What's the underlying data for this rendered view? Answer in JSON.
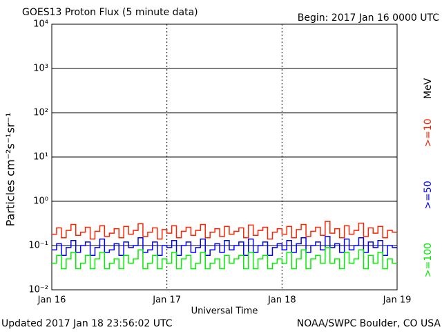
{
  "chart_data": {
    "type": "line",
    "title": "GOES13 Proton Flux (5 minute data)",
    "subtitle": "Begin: 2017 Jan 16 0000 UTC",
    "y_label": "Particles cm⁻²s⁻¹sr⁻¹",
    "x_label": "Universal Time",
    "legend_unit": "MeV",
    "footer_left": "Updated 2017 Jan 18 23:56:02 UTC",
    "footer_right": "NOAA/SWPC Boulder, CO USA",
    "log_scale": true,
    "grid": true,
    "xlim": [
      0,
      72
    ],
    "xticks": [
      {
        "value": 0,
        "label": "Jan 16"
      },
      {
        "value": 24,
        "label": "Jan 17"
      },
      {
        "value": 48,
        "label": "Jan 18"
      },
      {
        "value": 72,
        "label": "Jan 19"
      }
    ],
    "ylim": [
      0.01,
      10000
    ],
    "yticks": [
      {
        "value": 0.01,
        "label": "10⁻²"
      },
      {
        "value": 0.1,
        "label": "10⁻¹"
      },
      {
        "value": 1,
        "label": "10⁰"
      },
      {
        "value": 10,
        "label": "10¹"
      },
      {
        "value": 100,
        "label": "10²"
      },
      {
        "value": 1000,
        "label": "10³"
      },
      {
        "value": 10000,
        "label": "10⁴"
      }
    ],
    "x": [
      0,
      1,
      2,
      3,
      4,
      5,
      6,
      7,
      8,
      9,
      10,
      11,
      12,
      13,
      14,
      15,
      16,
      17,
      18,
      19,
      20,
      21,
      22,
      23,
      24,
      25,
      26,
      27,
      28,
      29,
      30,
      31,
      32,
      33,
      34,
      35,
      36,
      37,
      38,
      39,
      40,
      41,
      42,
      43,
      44,
      45,
      46,
      47,
      48,
      49,
      50,
      51,
      52,
      53,
      54,
      55,
      56,
      57,
      58,
      59,
      60,
      61,
      62,
      63,
      64,
      65,
      66,
      67,
      68,
      69,
      70,
      71
    ],
    "series": [
      {
        "name": ">=10",
        "color": "#ff2200",
        "values": [
          0.18,
          0.25,
          0.15,
          0.22,
          0.3,
          0.17,
          0.2,
          0.26,
          0.14,
          0.21,
          0.28,
          0.16,
          0.19,
          0.24,
          0.15,
          0.27,
          0.18,
          0.22,
          0.31,
          0.16,
          0.2,
          0.25,
          0.14,
          0.23,
          0.19,
          0.28,
          0.15,
          0.21,
          0.26,
          0.17,
          0.22,
          0.3,
          0.15,
          0.2,
          0.24,
          0.16,
          0.27,
          0.18,
          0.21,
          0.25,
          0.15,
          0.29,
          0.17,
          0.22,
          0.26,
          0.14,
          0.2,
          0.24,
          0.18,
          0.27,
          0.15,
          0.23,
          0.3,
          0.16,
          0.21,
          0.26,
          0.17,
          0.35,
          0.19,
          0.24,
          0.15,
          0.28,
          0.18,
          0.22,
          0.32,
          0.16,
          0.25,
          0.19,
          0.27,
          0.15,
          0.22,
          0.2
        ]
      },
      {
        "name": ">=50",
        "color": "#0000ff",
        "values": [
          0.08,
          0.11,
          0.06,
          0.09,
          0.13,
          0.07,
          0.1,
          0.12,
          0.06,
          0.09,
          0.14,
          0.07,
          0.08,
          0.11,
          0.06,
          0.12,
          0.09,
          0.1,
          0.15,
          0.07,
          0.08,
          0.12,
          0.06,
          0.1,
          0.09,
          0.13,
          0.06,
          0.1,
          0.12,
          0.07,
          0.09,
          0.14,
          0.06,
          0.08,
          0.11,
          0.07,
          0.13,
          0.08,
          0.1,
          0.12,
          0.06,
          0.14,
          0.07,
          0.1,
          0.12,
          0.06,
          0.09,
          0.11,
          0.08,
          0.13,
          0.07,
          0.11,
          0.15,
          0.07,
          0.1,
          0.12,
          0.08,
          0.16,
          0.09,
          0.11,
          0.07,
          0.14,
          0.08,
          0.1,
          0.15,
          0.07,
          0.12,
          0.09,
          0.13,
          0.06,
          0.1,
          0.09
        ]
      },
      {
        "name": ">=100",
        "color": "#00ee00",
        "values": [
          0.04,
          0.06,
          0.03,
          0.05,
          0.07,
          0.03,
          0.04,
          0.06,
          0.03,
          0.05,
          0.07,
          0.03,
          0.04,
          0.05,
          0.03,
          0.06,
          0.04,
          0.05,
          0.08,
          0.03,
          0.04,
          0.06,
          0.03,
          0.05,
          0.04,
          0.07,
          0.03,
          0.05,
          0.06,
          0.03,
          0.04,
          0.07,
          0.03,
          0.04,
          0.05,
          0.03,
          0.06,
          0.04,
          0.05,
          0.06,
          0.03,
          0.07,
          0.03,
          0.05,
          0.06,
          0.03,
          0.04,
          0.05,
          0.04,
          0.07,
          0.03,
          0.05,
          0.08,
          0.03,
          0.05,
          0.06,
          0.04,
          0.09,
          0.04,
          0.05,
          0.03,
          0.07,
          0.04,
          0.05,
          0.08,
          0.03,
          0.06,
          0.04,
          0.07,
          0.03,
          0.05,
          0.04
        ]
      }
    ]
  }
}
